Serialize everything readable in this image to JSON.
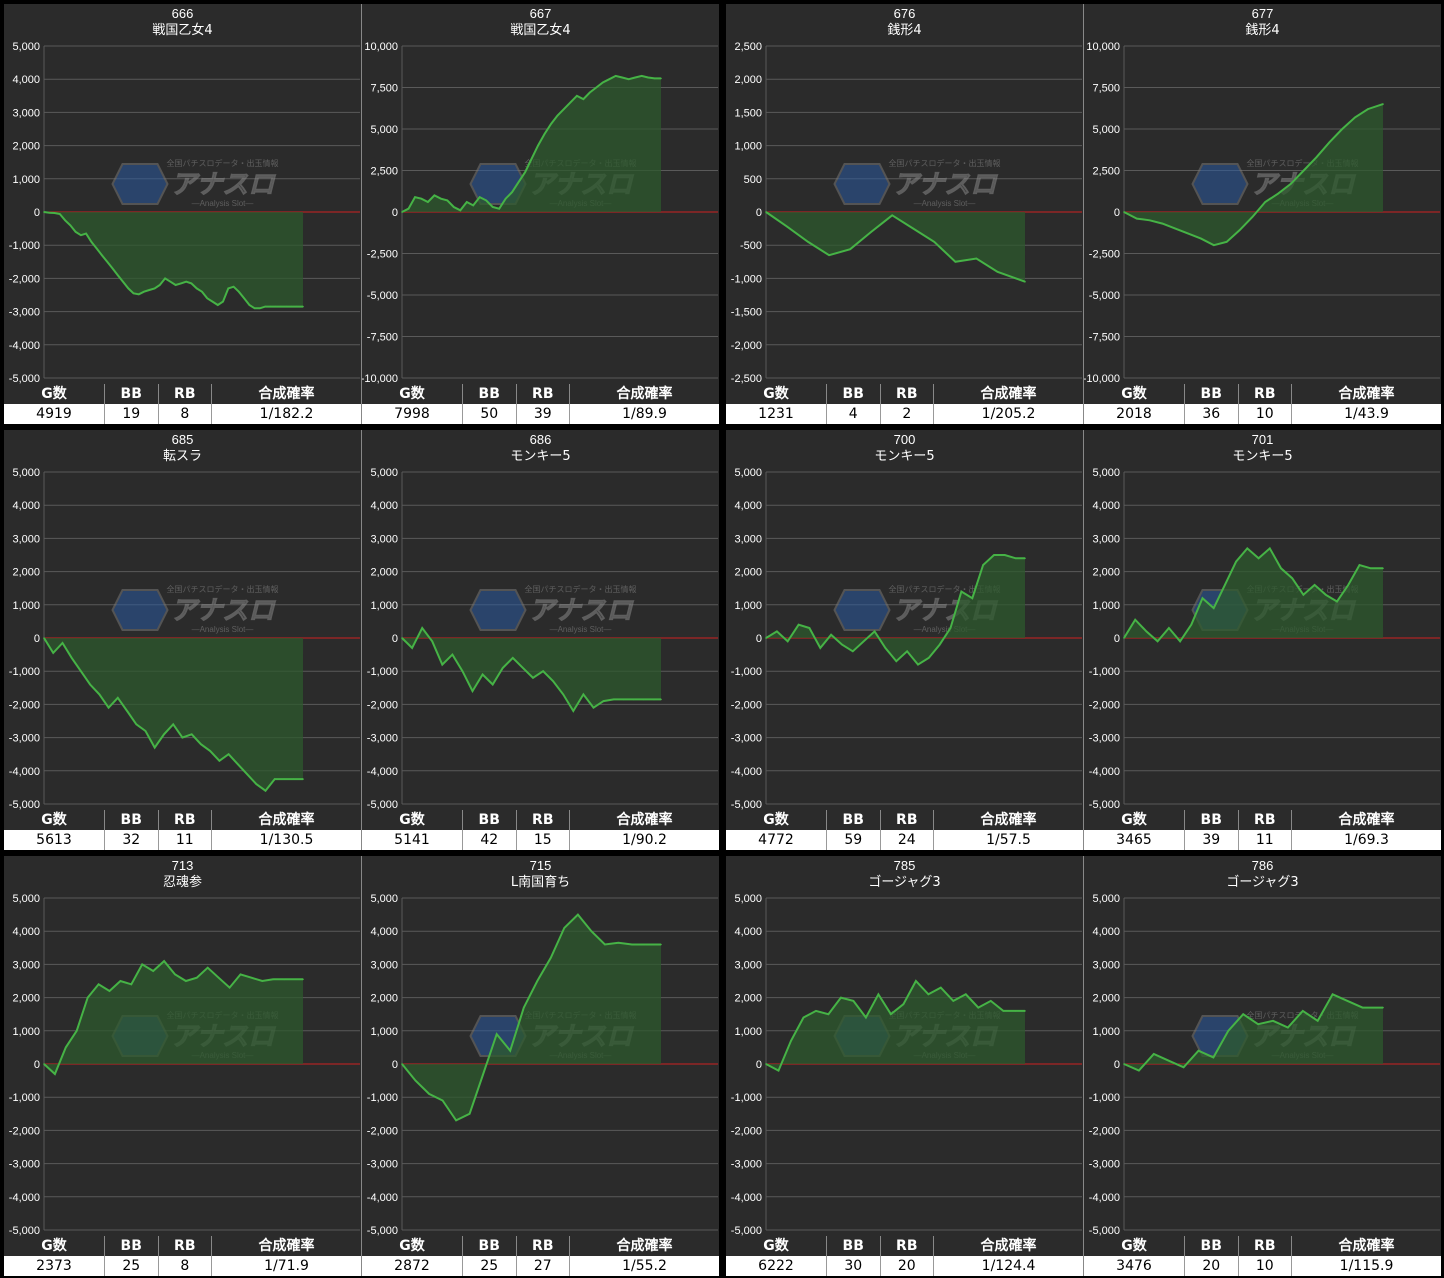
{
  "colors": {
    "line": "#46b346",
    "fill": "#2e5a2e",
    "zero": "#cc2222",
    "grid": "#5a5a5a",
    "bg": "#2b2b2b"
  },
  "watermark": {
    "logo_text": "アナスロ",
    "tagline": "全国パチスロデータ・出玉情報",
    "sub": "―Analysis Slot―"
  },
  "table_headers": [
    "G数",
    "BB",
    "RB",
    "合成確率"
  ],
  "machines": [
    {
      "id": "666",
      "title": "666",
      "name": "戦国乙女4",
      "g": "4919",
      "bb": "19",
      "rb": "8",
      "prob": "1/182.2",
      "chart_data": {
        "type": "area",
        "ylim": [
          -5000,
          5000
        ],
        "yticks": [
          -5000,
          -4000,
          -3000,
          -2000,
          -1000,
          0,
          1000,
          2000,
          3000,
          4000,
          5000
        ],
        "tick_labels": [
          "-5,000",
          "-4,000",
          "-3,000",
          "-2,000",
          "-1,000",
          "0",
          "1,000",
          "2,000",
          "3,000",
          "4,000",
          "5,000"
        ],
        "x": [
          0,
          100,
          200,
          300,
          400,
          500,
          600,
          700,
          800,
          900,
          1000,
          1100,
          1200,
          1300,
          1400,
          1500,
          1600,
          1700,
          1800,
          1900,
          2000,
          2100,
          2200,
          2300,
          2400,
          2500,
          2600,
          2700,
          2800,
          2900,
          3000,
          3100,
          3200,
          3300,
          3400,
          3500,
          3600,
          3700,
          3800,
          3900,
          4000,
          4100,
          4200,
          4300,
          4400,
          4500,
          4600,
          4700,
          4800,
          4919
        ],
        "values": [
          0,
          -20,
          -30,
          -60,
          -250,
          -400,
          -600,
          -700,
          -650,
          -900,
          -1100,
          -1300,
          -1500,
          -1700,
          -1900,
          -2100,
          -2300,
          -2450,
          -2480,
          -2400,
          -2350,
          -2300,
          -2200,
          -2000,
          -2100,
          -2200,
          -2150,
          -2100,
          -2150,
          -2300,
          -2400,
          -2600,
          -2700,
          -2800,
          -2700,
          -2300,
          -2250,
          -2400,
          -2600,
          -2800,
          -2900,
          -2900,
          -2850,
          -2850,
          -2850,
          -2850,
          -2850,
          -2850,
          -2850,
          -2850
        ]
      }
    },
    {
      "id": "667",
      "title": "667",
      "name": "戦国乙女4",
      "g": "7998",
      "bb": "50",
      "rb": "39",
      "prob": "1/89.9",
      "chart_data": {
        "type": "area",
        "ylim": [
          -10000,
          10000
        ],
        "yticks": [
          -10000,
          -7500,
          -5000,
          -2500,
          0,
          2500,
          5000,
          7500,
          10000
        ],
        "tick_labels": [
          "-10,000",
          "-7,500",
          "-5,000",
          "-2,500",
          "0",
          "2,500",
          "5,000",
          "7,500",
          "10,000"
        ],
        "x": [
          0,
          200,
          400,
          600,
          800,
          1000,
          1200,
          1400,
          1600,
          1800,
          2000,
          2200,
          2400,
          2600,
          2800,
          3000,
          3200,
          3400,
          3600,
          3800,
          4000,
          4200,
          4400,
          4600,
          4800,
          5000,
          5200,
          5400,
          5600,
          5800,
          6000,
          6200,
          6400,
          6600,
          6800,
          7000,
          7200,
          7400,
          7600,
          7800,
          7998
        ],
        "values": [
          0,
          200,
          900,
          800,
          600,
          1000,
          800,
          700,
          300,
          100,
          600,
          400,
          900,
          700,
          300,
          200,
          800,
          1200,
          1800,
          2400,
          3200,
          4000,
          4700,
          5300,
          5800,
          6200,
          6600,
          7000,
          6800,
          7200,
          7500,
          7800,
          8000,
          8200,
          8100,
          8000,
          8100,
          8200,
          8100,
          8050,
          8050
        ]
      }
    },
    {
      "id": "676",
      "title": "676",
      "name": "銭形4",
      "g": "1231",
      "bb": "4",
      "rb": "2",
      "prob": "1/205.2",
      "chart_data": {
        "type": "area",
        "ylim": [
          -2500,
          2500
        ],
        "yticks": [
          -2500,
          -2000,
          -1500,
          -1000,
          -500,
          0,
          500,
          1000,
          1500,
          2000,
          2500
        ],
        "tick_labels": [
          "-2,500",
          "-2,000",
          "-1,500",
          "-1,000",
          "-500",
          "0",
          "500",
          "1,000",
          "1,500",
          "2,000",
          "2,500"
        ],
        "x": [
          0,
          100,
          200,
          300,
          400,
          500,
          600,
          700,
          800,
          900,
          1000,
          1100,
          1231
        ],
        "values": [
          0,
          -220,
          -450,
          -650,
          -560,
          -300,
          -50,
          -250,
          -450,
          -750,
          -700,
          -900,
          -1050
        ]
      }
    },
    {
      "id": "677",
      "title": "677",
      "name": "銭形4",
      "g": "2018",
      "bb": "36",
      "rb": "10",
      "prob": "1/43.9",
      "chart_data": {
        "type": "area",
        "ylim": [
          -10000,
          10000
        ],
        "yticks": [
          -10000,
          -7500,
          -5000,
          -2500,
          0,
          2500,
          5000,
          7500,
          10000
        ],
        "tick_labels": [
          "-10,000",
          "-7,500",
          "-5,000",
          "-2,500",
          "0",
          "2,500",
          "5,000",
          "7,500",
          "10,000"
        ],
        "x": [
          0,
          100,
          200,
          300,
          400,
          500,
          600,
          700,
          800,
          900,
          1000,
          1100,
          1200,
          1300,
          1400,
          1500,
          1600,
          1700,
          1800,
          1900,
          2018
        ],
        "values": [
          0,
          -400,
          -500,
          -700,
          -1000,
          -1300,
          -1600,
          -2000,
          -1800,
          -1100,
          -300,
          600,
          1100,
          1700,
          2500,
          3300,
          4200,
          5000,
          5700,
          6200,
          6500
        ]
      }
    },
    {
      "id": "685",
      "title": "685",
      "name": "転スラ",
      "g": "5613",
      "bb": "32",
      "rb": "11",
      "prob": "1/130.5",
      "chart_data": {
        "type": "area",
        "ylim": [
          -5000,
          5000
        ],
        "yticks": [
          -5000,
          -4000,
          -3000,
          -2000,
          -1000,
          0,
          1000,
          2000,
          3000,
          4000,
          5000
        ],
        "tick_labels": [
          "-5,000",
          "-4,000",
          "-3,000",
          "-2,000",
          "-1,000",
          "0",
          "1,000",
          "2,000",
          "3,000",
          "4,000",
          "5,000"
        ],
        "x": [
          0,
          200,
          400,
          600,
          800,
          1000,
          1200,
          1400,
          1600,
          1800,
          2000,
          2200,
          2400,
          2600,
          2800,
          3000,
          3200,
          3400,
          3600,
          3800,
          4000,
          4200,
          4400,
          4600,
          4800,
          5000,
          5200,
          5400,
          5613
        ],
        "values": [
          0,
          -450,
          -150,
          -600,
          -1000,
          -1400,
          -1700,
          -2100,
          -1800,
          -2200,
          -2600,
          -2800,
          -3300,
          -2900,
          -2600,
          -3000,
          -2900,
          -3200,
          -3400,
          -3700,
          -3500,
          -3800,
          -4100,
          -4400,
          -4600,
          -4250,
          -4250,
          -4250,
          -4250
        ]
      }
    },
    {
      "id": "686",
      "title": "686",
      "name": "モンキー5",
      "g": "5141",
      "bb": "42",
      "rb": "15",
      "prob": "1/90.2",
      "chart_data": {
        "type": "area",
        "ylim": [
          -5000,
          5000
        ],
        "yticks": [
          -5000,
          -4000,
          -3000,
          -2000,
          -1000,
          0,
          1000,
          2000,
          3000,
          4000,
          5000
        ],
        "tick_labels": [
          "-5,000",
          "-4,000",
          "-3,000",
          "-2,000",
          "-1,000",
          "0",
          "1,000",
          "2,000",
          "3,000",
          "4,000",
          "5,000"
        ],
        "x": [
          0,
          200,
          400,
          600,
          800,
          1000,
          1200,
          1400,
          1600,
          1800,
          2000,
          2200,
          2400,
          2600,
          2800,
          3000,
          3200,
          3400,
          3600,
          3800,
          4000,
          4200,
          4400,
          4600,
          4800,
          5000,
          5141
        ],
        "values": [
          0,
          -300,
          300,
          -100,
          -800,
          -500,
          -1000,
          -1600,
          -1100,
          -1400,
          -900,
          -600,
          -900,
          -1200,
          -1000,
          -1300,
          -1700,
          -2200,
          -1700,
          -2100,
          -1900,
          -1850,
          -1850,
          -1850,
          -1850,
          -1850,
          -1850
        ]
      }
    },
    {
      "id": "700",
      "title": "700",
      "name": "モンキー5",
      "g": "4772",
      "bb": "59",
      "rb": "24",
      "prob": "1/57.5",
      "chart_data": {
        "type": "area",
        "ylim": [
          -5000,
          5000
        ],
        "yticks": [
          -5000,
          -4000,
          -3000,
          -2000,
          -1000,
          0,
          1000,
          2000,
          3000,
          4000,
          5000
        ],
        "tick_labels": [
          "-5,000",
          "-4,000",
          "-3,000",
          "-2,000",
          "-1,000",
          "0",
          "1,000",
          "2,000",
          "3,000",
          "4,000",
          "5,000"
        ],
        "x": [
          0,
          200,
          400,
          600,
          800,
          1000,
          1200,
          1400,
          1600,
          1800,
          2000,
          2200,
          2400,
          2600,
          2800,
          3000,
          3200,
          3400,
          3600,
          3800,
          4000,
          4200,
          4400,
          4600,
          4772
        ],
        "values": [
          0,
          200,
          -100,
          400,
          300,
          -300,
          100,
          -200,
          -400,
          -100,
          200,
          -300,
          -700,
          -400,
          -800,
          -600,
          -200,
          300,
          1400,
          1200,
          2200,
          2500,
          2500,
          2400,
          2400
        ]
      }
    },
    {
      "id": "701",
      "title": "701",
      "name": "モンキー5",
      "g": "3465",
      "bb": "39",
      "rb": "11",
      "prob": "1/69.3",
      "chart_data": {
        "type": "area",
        "ylim": [
          -5000,
          5000
        ],
        "yticks": [
          -5000,
          -4000,
          -3000,
          -2000,
          -1000,
          0,
          1000,
          2000,
          3000,
          4000,
          5000
        ],
        "tick_labels": [
          "-5,000",
          "-4,000",
          "-3,000",
          "-2,000",
          "-1,000",
          "0",
          "1,000",
          "2,000",
          "3,000",
          "4,000",
          "5,000"
        ],
        "x": [
          0,
          150,
          300,
          450,
          600,
          750,
          900,
          1050,
          1200,
          1350,
          1500,
          1650,
          1800,
          1950,
          2100,
          2250,
          2400,
          2550,
          2700,
          2850,
          3000,
          3150,
          3300,
          3465
        ],
        "values": [
          0,
          550,
          200,
          -100,
          300,
          -100,
          400,
          1200,
          900,
          1600,
          2300,
          2700,
          2400,
          2700,
          2100,
          1800,
          1300,
          1600,
          1300,
          1100,
          1600,
          2200,
          2100,
          2100
        ]
      }
    },
    {
      "id": "713",
      "title": "713",
      "name": "忍魂参",
      "g": "2373",
      "bb": "25",
      "rb": "8",
      "prob": "1/71.9",
      "chart_data": {
        "type": "area",
        "ylim": [
          -5000,
          5000
        ],
        "yticks": [
          -5000,
          -4000,
          -3000,
          -2000,
          -1000,
          0,
          1000,
          2000,
          3000,
          4000,
          5000
        ],
        "tick_labels": [
          "-5,000",
          "-4,000",
          "-3,000",
          "-2,000",
          "-1,000",
          "0",
          "1,000",
          "2,000",
          "3,000",
          "4,000",
          "5,000"
        ],
        "x": [
          0,
          100,
          200,
          300,
          400,
          500,
          600,
          700,
          800,
          900,
          1000,
          1100,
          1200,
          1300,
          1400,
          1500,
          1600,
          1700,
          1800,
          1900,
          2000,
          2100,
          2200,
          2373
        ],
        "values": [
          0,
          -300,
          500,
          1000,
          2000,
          2400,
          2200,
          2500,
          2400,
          3000,
          2800,
          3100,
          2700,
          2500,
          2600,
          2900,
          2600,
          2300,
          2700,
          2600,
          2500,
          2550,
          2550,
          2550
        ]
      }
    },
    {
      "id": "715",
      "title": "715",
      "name": "L南国育ち",
      "g": "2872",
      "bb": "25",
      "rb": "27",
      "prob": "1/55.2",
      "chart_data": {
        "type": "area",
        "ylim": [
          -5000,
          5000
        ],
        "yticks": [
          -5000,
          -4000,
          -3000,
          -2000,
          -1000,
          0,
          1000,
          2000,
          3000,
          4000,
          5000
        ],
        "tick_labels": [
          "-5,000",
          "-4,000",
          "-3,000",
          "-2,000",
          "-1,000",
          "0",
          "1,000",
          "2,000",
          "3,000",
          "4,000",
          "5,000"
        ],
        "x": [
          0,
          150,
          300,
          450,
          600,
          750,
          900,
          1050,
          1200,
          1350,
          1500,
          1650,
          1800,
          1950,
          2100,
          2250,
          2400,
          2550,
          2700,
          2872
        ],
        "values": [
          0,
          -500,
          -900,
          -1100,
          -1700,
          -1500,
          -300,
          900,
          400,
          1700,
          2500,
          3200,
          4100,
          4500,
          4000,
          3600,
          3650,
          3600,
          3600,
          3600
        ]
      }
    },
    {
      "id": "785",
      "title": "785",
      "name": "ゴージャグ3",
      "g": "6222",
      "bb": "30",
      "rb": "20",
      "prob": "1/124.4",
      "chart_data": {
        "type": "area",
        "ylim": [
          -5000,
          5000
        ],
        "yticks": [
          -5000,
          -4000,
          -3000,
          -2000,
          -1000,
          0,
          1000,
          2000,
          3000,
          4000,
          5000
        ],
        "tick_labels": [
          "-5,000",
          "-4,000",
          "-3,000",
          "-2,000",
          "-1,000",
          "0",
          "1,000",
          "2,000",
          "3,000",
          "4,000",
          "5,000"
        ],
        "x": [
          0,
          300,
          600,
          900,
          1200,
          1500,
          1800,
          2100,
          2400,
          2700,
          3000,
          3300,
          3600,
          3900,
          4200,
          4500,
          4800,
          5100,
          5400,
          5700,
          6000,
          6222
        ],
        "values": [
          0,
          -200,
          700,
          1400,
          1600,
          1500,
          2000,
          1900,
          1400,
          2100,
          1500,
          1800,
          2500,
          2100,
          2300,
          1900,
          2100,
          1700,
          1900,
          1600,
          1600,
          1600
        ]
      }
    },
    {
      "id": "786",
      "title": "786",
      "name": "ゴージャグ3",
      "g": "3476",
      "bb": "20",
      "rb": "10",
      "prob": "1/115.9",
      "chart_data": {
        "type": "area",
        "ylim": [
          -5000,
          5000
        ],
        "yticks": [
          -5000,
          -4000,
          -3000,
          -2000,
          -1000,
          0,
          1000,
          2000,
          3000,
          4000,
          5000
        ],
        "tick_labels": [
          "-5,000",
          "-4,000",
          "-3,000",
          "-2,000",
          "-1,000",
          "0",
          "1,000",
          "2,000",
          "3,000",
          "4,000",
          "5,000"
        ],
        "x": [
          0,
          200,
          400,
          600,
          800,
          1000,
          1200,
          1400,
          1600,
          1800,
          2000,
          2200,
          2400,
          2600,
          2800,
          3000,
          3200,
          3476
        ],
        "values": [
          0,
          -200,
          300,
          100,
          -100,
          400,
          200,
          1000,
          1500,
          1200,
          1300,
          1100,
          1600,
          1300,
          2100,
          1900,
          1700,
          1700
        ]
      }
    }
  ]
}
